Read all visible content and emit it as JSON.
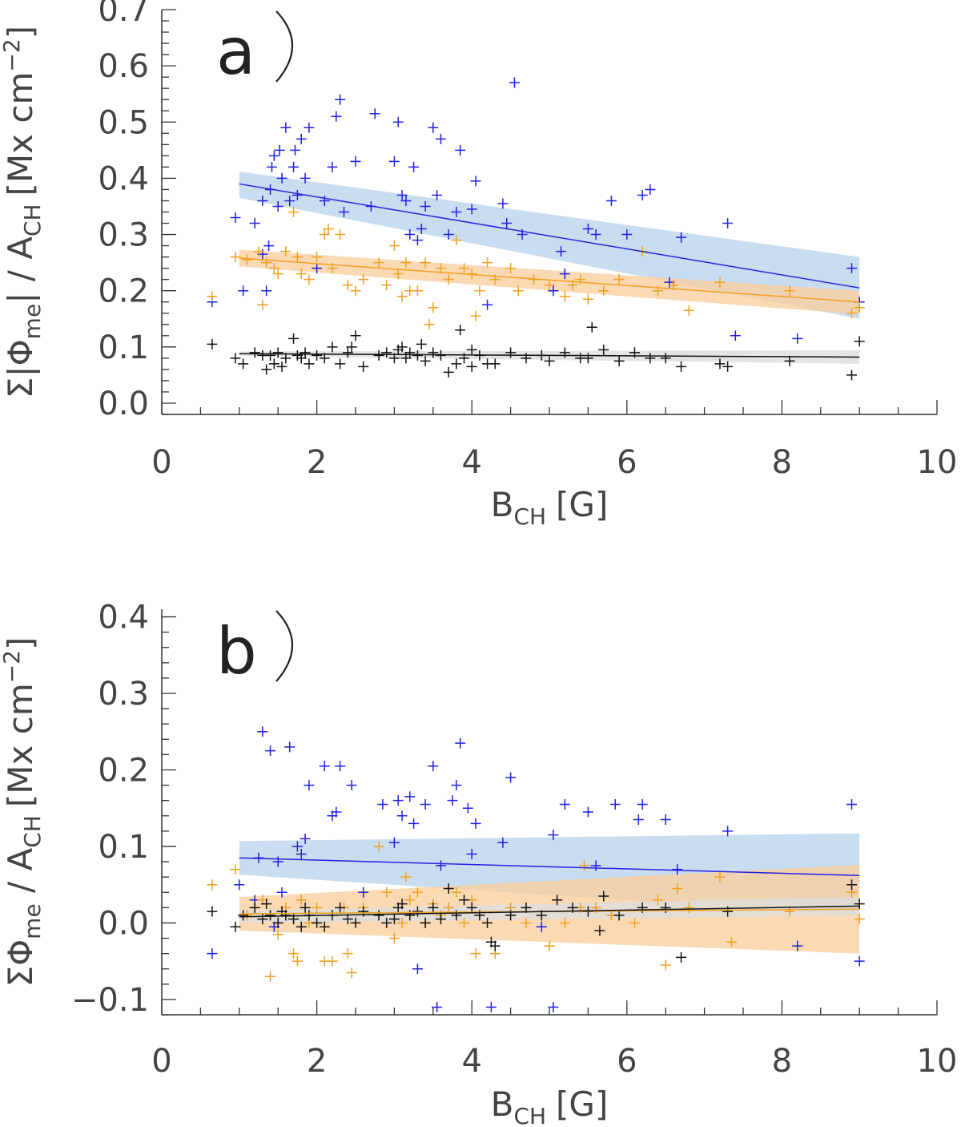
{
  "chart_data": [
    {
      "type": "scatter",
      "panel_label": "a",
      "xlabel": "B",
      "xlabel_sub": "CH",
      "xlabel_unit": "[G]",
      "ylabel": "Σ|Φme| / ACH [Mx cm⁻²]",
      "ylabel_parts": {
        "sigma": "Σ|Φ",
        "sub1": "me",
        "mid": "| / A",
        "sub2": "CH",
        "unit": "[Mx cm",
        "sup": "−2",
        "close": "]"
      },
      "xlim": [
        0,
        10
      ],
      "ylim": [
        -0.02,
        0.7
      ],
      "xticks": [
        0,
        2,
        4,
        6,
        8,
        10
      ],
      "xtick_labels": [
        "0",
        "2",
        "4",
        "6",
        "8",
        "10"
      ],
      "yticks": [
        0.0,
        0.1,
        0.2,
        0.3,
        0.4,
        0.5,
        0.6,
        0.7
      ],
      "ytick_labels": [
        "0.0",
        "0.1",
        "0.2",
        "0.3",
        "0.4",
        "0.5",
        "0.6",
        "0.7"
      ],
      "fits": [
        {
          "name": "blue",
          "color": "#2424e0",
          "band": "#bcd4ee",
          "x": [
            1,
            9
          ],
          "y": [
            0.39,
            0.205
          ],
          "band_lo": [
            0.365,
            0.15
          ],
          "band_hi": [
            0.412,
            0.26
          ]
        },
        {
          "name": "orange",
          "color": "#f0a020",
          "band": "#f9cfa0",
          "x": [
            1,
            9
          ],
          "y": [
            0.258,
            0.18
          ],
          "band_lo": [
            0.243,
            0.158
          ],
          "band_hi": [
            0.273,
            0.2
          ]
        },
        {
          "name": "black",
          "color": "#111111",
          "band": "#dddddd",
          "x": [
            1,
            9
          ],
          "y": [
            0.088,
            0.082
          ],
          "band_lo": [
            0.084,
            0.07
          ],
          "band_hi": [
            0.092,
            0.094
          ]
        }
      ],
      "series": [
        {
          "name": "blue",
          "color": "#2020e6",
          "x": [
            0.65,
            0.95,
            1.05,
            1.2,
            1.3,
            1.35,
            1.38,
            1.4,
            1.42,
            1.45,
            1.5,
            1.52,
            1.55,
            1.6,
            1.65,
            1.7,
            1.72,
            1.8,
            1.85,
            1.9,
            2.1,
            2.2,
            2.25,
            2.3,
            2.35,
            2.5,
            2.7,
            2.75,
            3.0,
            3.05,
            3.1,
            3.15,
            3.2,
            3.25,
            3.3,
            3.4,
            3.5,
            3.55,
            3.6,
            3.7,
            3.8,
            3.85,
            4.0,
            4.05,
            4.2,
            4.4,
            4.45,
            4.55,
            4.65,
            5.05,
            5.15,
            5.2,
            5.5,
            5.6,
            5.8,
            6.0,
            6.2,
            6.3,
            6.55,
            6.7,
            7.3,
            7.4,
            8.2,
            8.9,
            9.0,
            2.0,
            3.35,
            1.3,
            1.75
          ],
          "y": [
            0.18,
            0.33,
            0.2,
            0.32,
            0.36,
            0.2,
            0.28,
            0.38,
            0.42,
            0.44,
            0.35,
            0.45,
            0.4,
            0.49,
            0.36,
            0.42,
            0.45,
            0.47,
            0.4,
            0.49,
            0.36,
            0.42,
            0.51,
            0.54,
            0.34,
            0.43,
            0.35,
            0.515,
            0.43,
            0.5,
            0.37,
            0.36,
            0.3,
            0.42,
            0.29,
            0.35,
            0.49,
            0.37,
            0.47,
            0.3,
            0.34,
            0.45,
            0.345,
            0.395,
            0.175,
            0.355,
            0.32,
            0.57,
            0.3,
            0.2,
            0.27,
            0.23,
            0.31,
            0.3,
            0.36,
            0.3,
            0.37,
            0.38,
            0.215,
            0.295,
            0.32,
            0.12,
            0.115,
            0.24,
            0.18,
            0.24,
            0.31,
            0.265,
            0.37
          ]
        },
        {
          "name": "orange",
          "color": "#f0a020",
          "x": [
            0.65,
            0.95,
            1.1,
            1.25,
            1.3,
            1.35,
            1.45,
            1.5,
            1.6,
            1.7,
            1.75,
            1.8,
            1.9,
            2.0,
            2.1,
            2.2,
            2.3,
            2.4,
            2.5,
            2.6,
            2.8,
            2.9,
            3.0,
            3.05,
            3.1,
            3.15,
            3.2,
            3.3,
            3.4,
            3.5,
            3.6,
            3.7,
            3.8,
            3.9,
            4.0,
            4.1,
            4.2,
            4.3,
            4.5,
            4.6,
            4.8,
            5.0,
            5.2,
            5.4,
            5.5,
            5.7,
            5.9,
            6.2,
            6.4,
            6.6,
            6.8,
            7.2,
            8.1,
            8.9,
            9.0,
            3.45,
            2.15,
            4.05,
            5.3
          ],
          "y": [
            0.19,
            0.26,
            0.255,
            0.27,
            0.175,
            0.25,
            0.24,
            0.23,
            0.27,
            0.34,
            0.26,
            0.23,
            0.22,
            0.26,
            0.3,
            0.24,
            0.3,
            0.21,
            0.2,
            0.22,
            0.25,
            0.21,
            0.28,
            0.23,
            0.19,
            0.25,
            0.2,
            0.2,
            0.25,
            0.17,
            0.24,
            0.22,
            0.29,
            0.24,
            0.23,
            0.2,
            0.25,
            0.22,
            0.24,
            0.2,
            0.22,
            0.21,
            0.19,
            0.22,
            0.185,
            0.2,
            0.22,
            0.27,
            0.2,
            0.21,
            0.165,
            0.215,
            0.2,
            0.16,
            0.17,
            0.14,
            0.31,
            0.155,
            0.21
          ]
        },
        {
          "name": "black",
          "color": "#111111",
          "x": [
            0.65,
            0.95,
            1.05,
            1.2,
            1.3,
            1.35,
            1.4,
            1.45,
            1.5,
            1.55,
            1.6,
            1.7,
            1.75,
            1.8,
            1.85,
            1.9,
            2.0,
            2.1,
            2.2,
            2.3,
            2.4,
            2.5,
            2.6,
            2.8,
            2.9,
            3.0,
            3.05,
            3.1,
            3.15,
            3.2,
            3.3,
            3.35,
            3.4,
            3.5,
            3.6,
            3.7,
            3.8,
            3.9,
            4.0,
            4.1,
            4.2,
            4.3,
            4.5,
            4.7,
            4.9,
            5.0,
            5.2,
            5.4,
            5.5,
            5.7,
            5.9,
            6.1,
            6.3,
            6.5,
            6.7,
            7.2,
            7.3,
            8.1,
            8.9,
            9.0,
            3.85,
            2.45,
            4.0,
            5.55
          ],
          "y": [
            0.105,
            0.08,
            0.07,
            0.09,
            0.085,
            0.06,
            0.085,
            0.07,
            0.09,
            0.065,
            0.08,
            0.115,
            0.085,
            0.08,
            0.09,
            0.07,
            0.085,
            0.08,
            0.1,
            0.07,
            0.09,
            0.12,
            0.065,
            0.085,
            0.09,
            0.08,
            0.095,
            0.1,
            0.08,
            0.09,
            0.085,
            0.105,
            0.075,
            0.09,
            0.085,
            0.055,
            0.07,
            0.08,
            0.065,
            0.085,
            0.07,
            0.07,
            0.09,
            0.08,
            0.085,
            0.075,
            0.09,
            0.08,
            0.08,
            0.095,
            0.075,
            0.09,
            0.08,
            0.08,
            0.065,
            0.07,
            0.065,
            0.075,
            0.05,
            0.11,
            0.13,
            0.1,
            0.095,
            0.135
          ]
        }
      ]
    },
    {
      "type": "scatter",
      "panel_label": "b",
      "xlabel": "B",
      "xlabel_sub": "CH",
      "xlabel_unit": "[G]",
      "ylabel": "ΣΦme / ACH [Mx cm⁻²]",
      "ylabel_parts": {
        "sigma": "ΣΦ",
        "sub1": "me",
        "mid": " / A",
        "sub2": "CH",
        "unit": "[Mx cm",
        "sup": "−2",
        "close": "]"
      },
      "xlim": [
        0,
        10
      ],
      "ylim": [
        -0.12,
        0.41
      ],
      "xticks": [
        0,
        2,
        4,
        6,
        8,
        10
      ],
      "xtick_labels": [
        "0",
        "2",
        "4",
        "6",
        "8",
        "10"
      ],
      "yticks": [
        -0.1,
        0.0,
        0.1,
        0.2,
        0.3,
        0.4
      ],
      "ytick_labels": [
        "−0.1",
        "0.0",
        "0.1",
        "0.2",
        "0.3",
        "0.4"
      ],
      "fits": [
        {
          "name": "blue",
          "color": "#2424e0",
          "band": "#bcd4ee",
          "x": [
            1,
            9
          ],
          "y": [
            0.085,
            0.062
          ],
          "band_lo": [
            0.063,
            0.01
          ],
          "band_hi": [
            0.107,
            0.117
          ]
        },
        {
          "name": "orange",
          "color": "#f0a020",
          "band": "#f9cfa0",
          "x": [
            1,
            9
          ],
          "y": [
            0.012,
            0.018
          ],
          "band_lo": [
            -0.01,
            -0.04
          ],
          "band_hi": [
            0.034,
            0.076
          ]
        },
        {
          "name": "black",
          "color": "#111111",
          "band": "#dddddd",
          "x": [
            1,
            9
          ],
          "y": [
            0.008,
            0.022
          ],
          "band_lo": [
            0.0,
            0.01
          ],
          "band_hi": [
            0.016,
            0.034
          ]
        }
      ],
      "series": [
        {
          "name": "blue",
          "color": "#2020e6",
          "x": [
            0.65,
            1.0,
            1.25,
            1.3,
            1.4,
            1.45,
            1.5,
            1.55,
            1.65,
            1.75,
            1.8,
            1.85,
            1.9,
            2.1,
            2.2,
            2.3,
            2.45,
            2.6,
            2.85,
            3.0,
            3.05,
            3.1,
            3.2,
            3.25,
            3.3,
            3.4,
            3.5,
            3.6,
            3.75,
            3.8,
            3.85,
            3.95,
            4.0,
            4.05,
            4.4,
            4.5,
            4.9,
            5.05,
            5.2,
            5.5,
            5.6,
            5.85,
            6.15,
            6.2,
            6.5,
            6.65,
            7.3,
            8.2,
            8.9,
            9.0,
            2.25,
            3.55,
            4.25,
            5.05,
            1.2
          ],
          "y": [
            -0.04,
            0.05,
            0.085,
            0.25,
            0.225,
            -0.005,
            0.08,
            0.04,
            0.23,
            0.1,
            0.09,
            0.11,
            0.18,
            0.205,
            0.14,
            0.205,
            0.18,
            0.04,
            0.155,
            0.105,
            0.16,
            0.14,
            0.165,
            0.13,
            -0.06,
            0.155,
            0.205,
            0.075,
            0.16,
            0.18,
            0.235,
            0.15,
            0.09,
            0.13,
            0.105,
            0.19,
            -0.005,
            0.115,
            0.155,
            0.145,
            0.075,
            0.155,
            0.135,
            0.155,
            0.135,
            0.07,
            0.12,
            -0.03,
            0.155,
            -0.05,
            0.145,
            -0.11,
            -0.11,
            -0.11,
            0.03
          ]
        },
        {
          "name": "orange",
          "color": "#f0a020",
          "x": [
            0.65,
            0.95,
            1.1,
            1.3,
            1.4,
            1.5,
            1.6,
            1.7,
            1.75,
            1.8,
            1.9,
            2.0,
            2.1,
            2.2,
            2.35,
            2.45,
            2.6,
            2.8,
            2.9,
            3.0,
            3.1,
            3.2,
            3.3,
            3.4,
            3.5,
            3.6,
            3.7,
            3.8,
            3.9,
            4.0,
            4.1,
            4.3,
            4.5,
            4.7,
            4.9,
            5.0,
            5.2,
            5.4,
            5.6,
            5.8,
            6.1,
            6.4,
            6.5,
            6.65,
            6.8,
            7.2,
            7.35,
            8.1,
            8.9,
            9.0,
            2.4,
            3.15,
            4.05,
            5.45
          ],
          "y": [
            0.05,
            0.07,
            0.01,
            0.03,
            -0.07,
            -0.015,
            0.02,
            -0.04,
            -0.05,
            0.03,
            0.0,
            0.02,
            -0.05,
            -0.05,
            0.02,
            -0.065,
            0.02,
            0.1,
            0.04,
            -0.02,
            0.0,
            0.03,
            0.04,
            0.0,
            0.025,
            0.01,
            0.02,
            0.04,
            0.0,
            0.03,
            0.01,
            -0.04,
            0.02,
            0.0,
            0.01,
            -0.03,
            0.0,
            0.02,
            0.02,
            0.01,
            0.0,
            0.03,
            -0.055,
            0.045,
            0.02,
            0.06,
            -0.025,
            0.015,
            0.04,
            0.005,
            -0.04,
            0.06,
            -0.04,
            0.075
          ]
        },
        {
          "name": "black",
          "color": "#111111",
          "x": [
            0.65,
            0.95,
            1.05,
            1.2,
            1.3,
            1.35,
            1.4,
            1.5,
            1.55,
            1.6,
            1.7,
            1.8,
            1.85,
            1.9,
            2.0,
            2.1,
            2.2,
            2.3,
            2.4,
            2.5,
            2.6,
            2.8,
            2.9,
            3.0,
            3.05,
            3.1,
            3.2,
            3.3,
            3.4,
            3.5,
            3.6,
            3.7,
            3.8,
            3.9,
            4.0,
            4.1,
            4.2,
            4.3,
            4.5,
            4.7,
            4.9,
            5.1,
            5.3,
            5.5,
            5.7,
            5.9,
            6.2,
            6.5,
            6.7,
            7.3,
            8.9,
            9.0,
            4.25,
            5.65
          ],
          "y": [
            0.015,
            -0.005,
            0.01,
            0.02,
            0.005,
            0.025,
            0.01,
            0.0,
            0.015,
            0.01,
            0.005,
            -0.005,
            0.02,
            0.01,
            0.0,
            -0.005,
            0.01,
            0.02,
            0.005,
            0.0,
            0.015,
            0.01,
            0.0,
            0.005,
            0.02,
            0.025,
            0.01,
            0.015,
            0.0,
            0.02,
            0.005,
            0.045,
            0.01,
            0.03,
            0.02,
            0.01,
            0.0,
            -0.03,
            0.01,
            0.02,
            0.01,
            0.03,
            0.02,
            0.015,
            0.035,
            0.01,
            0.02,
            0.02,
            -0.045,
            0.015,
            0.05,
            0.025,
            -0.025,
            -0.01
          ]
        }
      ]
    }
  ]
}
